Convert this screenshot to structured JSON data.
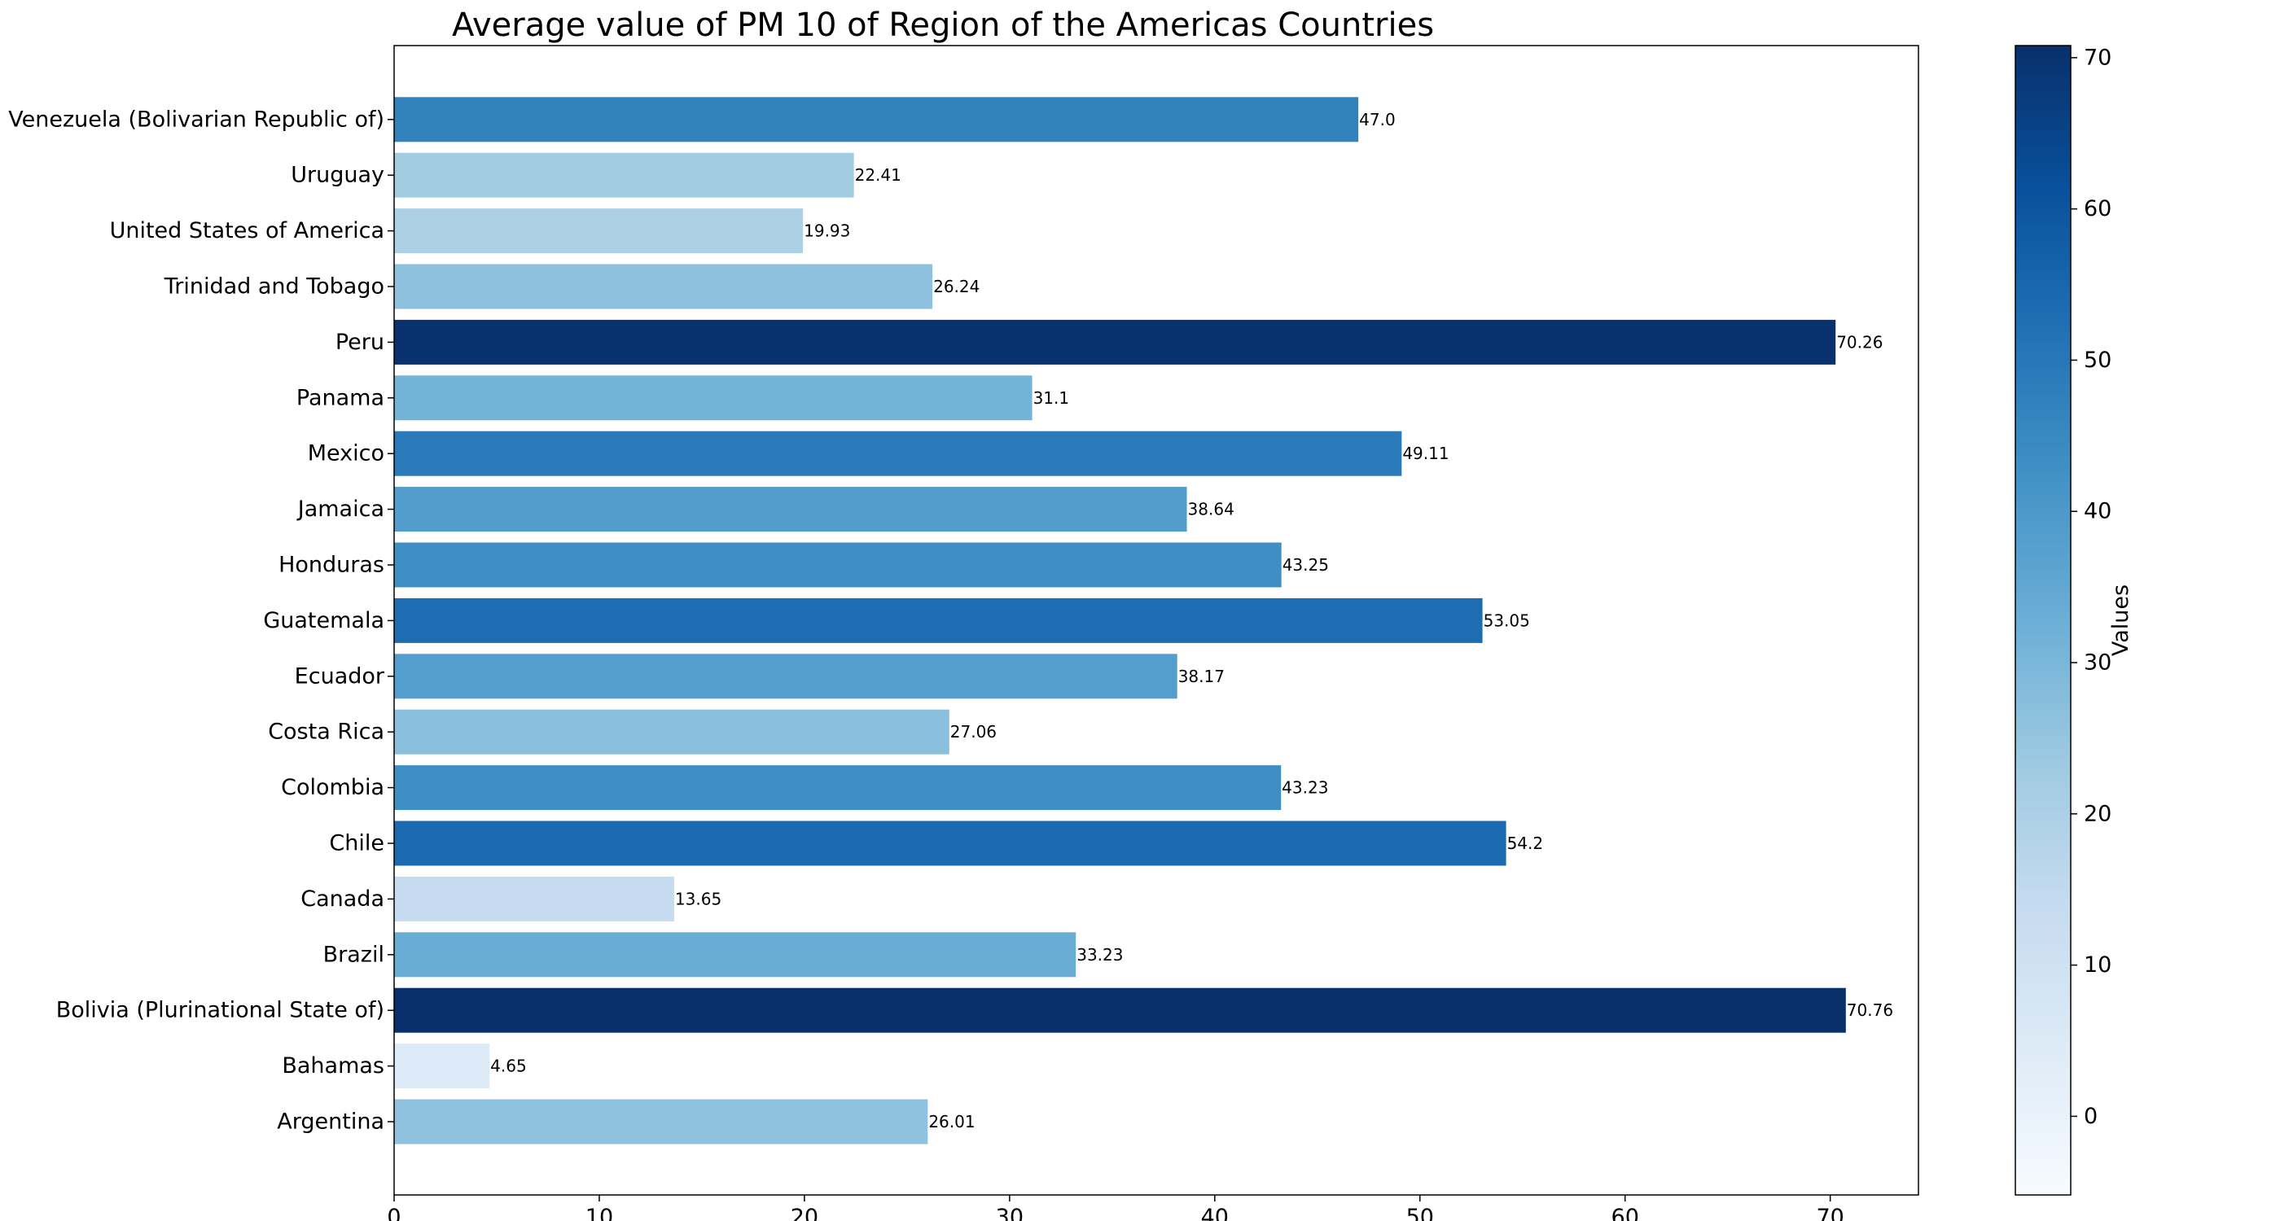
{
  "chart_data": {
    "type": "bar",
    "orientation": "horizontal",
    "title": "Average value of PM 10 of Region of the Americas Countries",
    "xlabel": "",
    "ylabel": "",
    "categories": [
      "Argentina",
      "Bahamas",
      "Bolivia (Plurinational State of)",
      "Brazil",
      "Canada",
      "Chile",
      "Colombia",
      "Costa Rica",
      "Ecuador",
      "Guatemala",
      "Honduras",
      "Jamaica",
      "Mexico",
      "Panama",
      "Peru",
      "Trinidad and Tobago",
      "United States of America",
      "Uruguay",
      "Venezuela (Bolivarian Republic of)"
    ],
    "values": [
      26.01,
      4.65,
      70.76,
      33.23,
      13.65,
      54.2,
      43.23,
      27.06,
      38.17,
      53.05,
      43.25,
      38.64,
      49.11,
      31.1,
      70.26,
      26.24,
      19.93,
      22.41,
      47.0
    ],
    "value_labels": [
      "26.01",
      "4.65",
      "70.76",
      "33.23",
      "13.65",
      "54.2",
      "43.23",
      "27.06",
      "38.17",
      "53.05",
      "43.25",
      "38.64",
      "49.11",
      "31.1",
      "70.26",
      "26.24",
      "19.93",
      "22.41",
      "47.0"
    ],
    "xlim": [
      0,
      74.3
    ],
    "xticks": [
      0,
      10,
      20,
      30,
      40,
      50,
      60,
      70
    ],
    "grid": false,
    "colormap": "Blues",
    "colorbar": {
      "label": "Values",
      "range": [
        -5.2,
        70.8
      ],
      "ticks": [
        0,
        10,
        20,
        30,
        40,
        50,
        60,
        70
      ]
    }
  }
}
